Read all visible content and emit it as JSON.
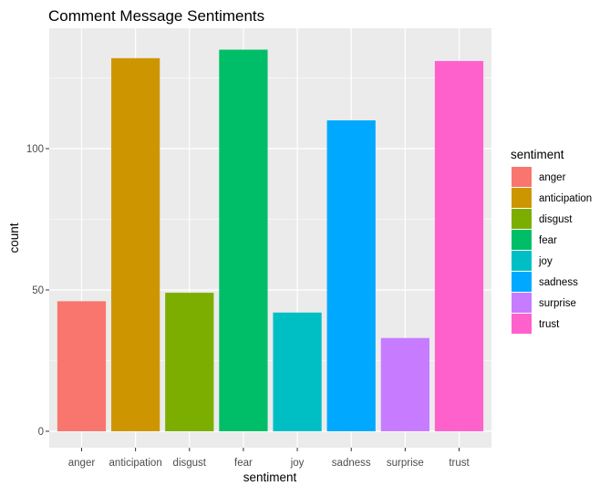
{
  "chart_data": {
    "type": "bar",
    "title": "Comment Message Sentiments",
    "xlabel": "sentiment",
    "ylabel": "count",
    "categories": [
      "anger",
      "anticipation",
      "disgust",
      "fear",
      "joy",
      "sadness",
      "surprise",
      "trust"
    ],
    "values": [
      46,
      132,
      49,
      135,
      42,
      110,
      33,
      131
    ],
    "colors": [
      "#F8766D",
      "#CD9600",
      "#7CAE00",
      "#00BE67",
      "#00BFC4",
      "#00A9FF",
      "#C77CFF",
      "#FF61CC"
    ],
    "ylim": [
      0,
      142
    ],
    "yticks": [
      0,
      50,
      100
    ],
    "ytick_labels": [
      "0",
      "50",
      "100"
    ],
    "grid": true,
    "legend": {
      "title": "sentiment",
      "placement": "right",
      "entries": [
        "anger",
        "anticipation",
        "disgust",
        "fear",
        "joy",
        "sadness",
        "surprise",
        "trust"
      ]
    },
    "panel_background": "#EBEBEB",
    "grid_color": "#FFFFFF"
  }
}
